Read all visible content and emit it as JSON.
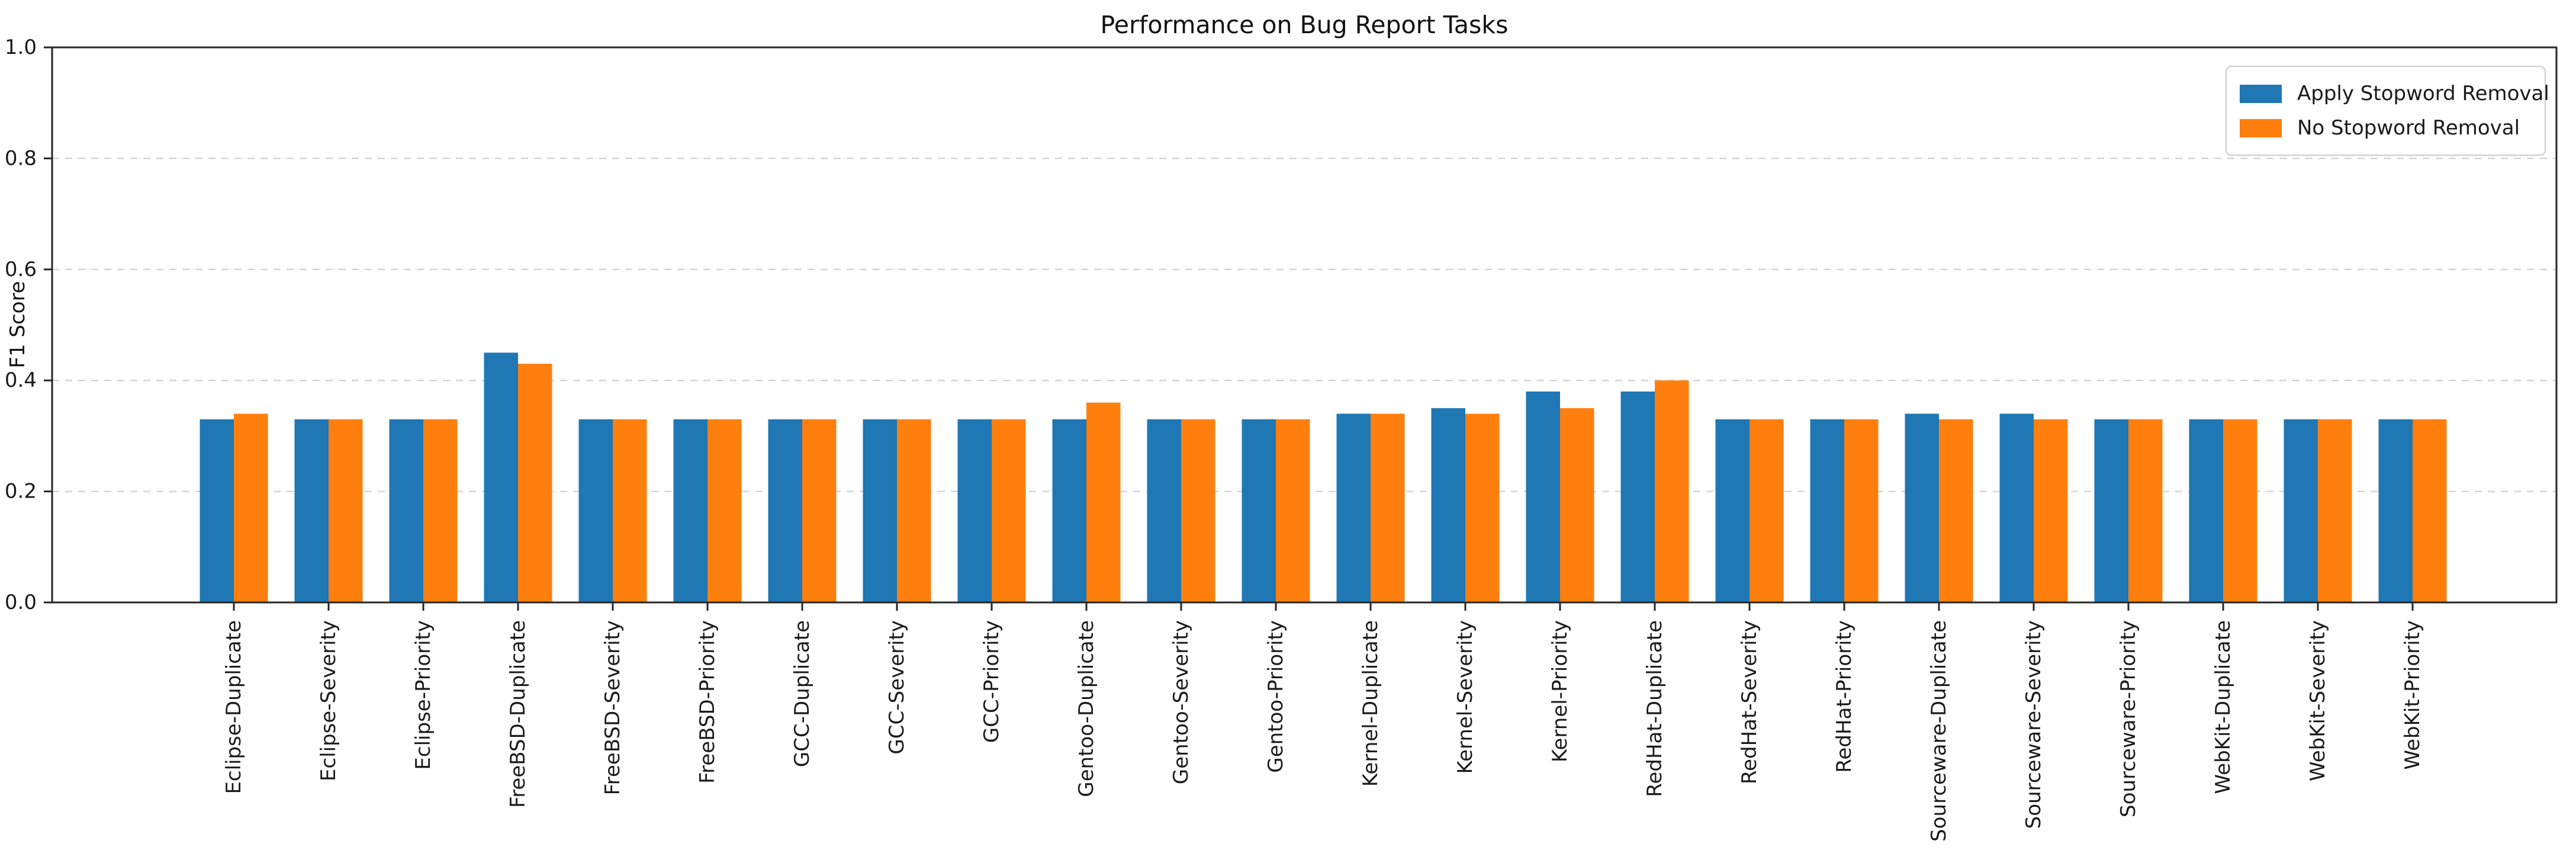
{
  "figure": {
    "title": "Performance on Bug Report Tasks"
  },
  "chart_data": {
    "type": "bar",
    "title": "Performance on Bug Report Tasks",
    "xlabel": "",
    "ylabel": "F1 Score",
    "ylim": [
      0.0,
      1.0
    ],
    "yticks": [
      0.0,
      0.2,
      0.4,
      0.6,
      0.8,
      1.0
    ],
    "grid": "horizontal dashed at 0.2/0.4/0.6/0.8",
    "legend_position": "upper right",
    "categories": [
      "Eclipse-Duplicate",
      "Eclipse-Severity",
      "Eclipse-Priority",
      "FreeBSD-Duplicate",
      "FreeBSD-Severity",
      "FreeBSD-Priority",
      "GCC-Duplicate",
      "GCC-Severity",
      "GCC-Priority",
      "Gentoo-Duplicate",
      "Gentoo-Severity",
      "Gentoo-Priority",
      "Kernel-Duplicate",
      "Kernel-Severity",
      "Kernel-Priority",
      "RedHat-Duplicate",
      "RedHat-Severity",
      "RedHat-Priority",
      "Sourceware-Duplicate",
      "Sourceware-Severity",
      "Sourceware-Priority",
      "WebKit-Duplicate",
      "WebKit-Severity",
      "WebKit-Priority"
    ],
    "series": [
      {
        "name": "Apply Stopword Removal",
        "color": "#1f77b4",
        "values": [
          0.33,
          0.33,
          0.33,
          0.45,
          0.33,
          0.33,
          0.33,
          0.33,
          0.33,
          0.33,
          0.33,
          0.33,
          0.34,
          0.35,
          0.38,
          0.38,
          0.33,
          0.33,
          0.34,
          0.34,
          0.33,
          0.33,
          0.33,
          0.33
        ]
      },
      {
        "name": "No Stopword Removal",
        "color": "#ff7f0e",
        "values": [
          0.34,
          0.33,
          0.33,
          0.43,
          0.33,
          0.33,
          0.33,
          0.33,
          0.33,
          0.36,
          0.33,
          0.33,
          0.34,
          0.34,
          0.35,
          0.4,
          0.33,
          0.33,
          0.33,
          0.33,
          0.33,
          0.33,
          0.33,
          0.33
        ]
      }
    ]
  },
  "colors": {
    "background": "#ffffff",
    "spine": "#262626",
    "grid": "#cccccc",
    "tick_label": "#1a1a1a",
    "legend_border": "#cccccc"
  }
}
